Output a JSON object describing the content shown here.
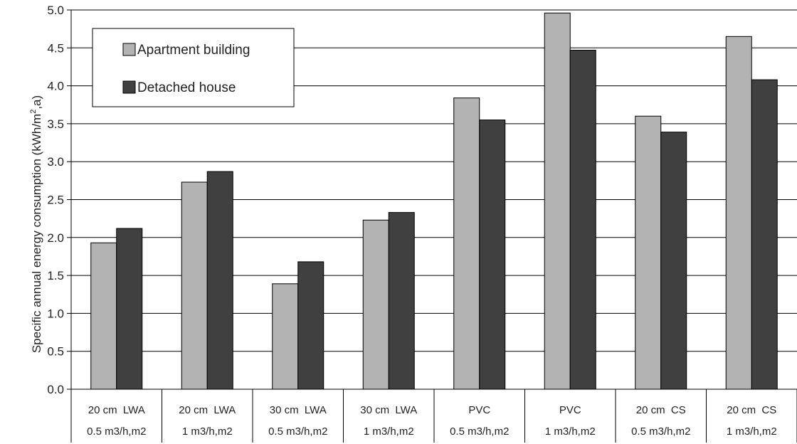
{
  "chart_data": {
    "type": "bar",
    "ylabel": "Specific annual energy consumption (kWh/m",
    "ylabel_sup": "2",
    "ylabel_tail": ",a)",
    "ylim": [
      0,
      5.0
    ],
    "yticks": [
      "0.0",
      "0.5",
      "1.0",
      "1.5",
      "2.0",
      "2.5",
      "3.0",
      "3.5",
      "4.0",
      "4.5",
      "5.0"
    ],
    "grid": true,
    "legend_position": "top-left",
    "categories": [
      {
        "line1": "20 cm  LWA",
        "line2": "0.5 m3/h,m2"
      },
      {
        "line1": "20 cm  LWA",
        "line2": "1 m3/h,m2"
      },
      {
        "line1": "30 cm  LWA",
        "line2": "0.5 m3/h,m2"
      },
      {
        "line1": "30 cm  LWA",
        "line2": "1 m3/h,m2"
      },
      {
        "line1": "PVC",
        "line2": "0.5 m3/h,m2"
      },
      {
        "line1": "PVC",
        "line2": "1 m3/h,m2"
      },
      {
        "line1": "20 cm  CS",
        "line2": "0.5 m3/h,m2"
      },
      {
        "line1": "20 cm  CS",
        "line2": "1 m3/h,m2"
      }
    ],
    "series": [
      {
        "name": "Apartment building",
        "color": "#b3b3b3",
        "values": [
          1.93,
          2.73,
          1.39,
          2.23,
          3.84,
          4.96,
          3.6,
          4.65
        ]
      },
      {
        "name": "Detached house",
        "color": "#404040",
        "values": [
          2.12,
          2.87,
          1.68,
          2.33,
          3.55,
          4.47,
          3.39,
          4.08
        ]
      }
    ]
  }
}
